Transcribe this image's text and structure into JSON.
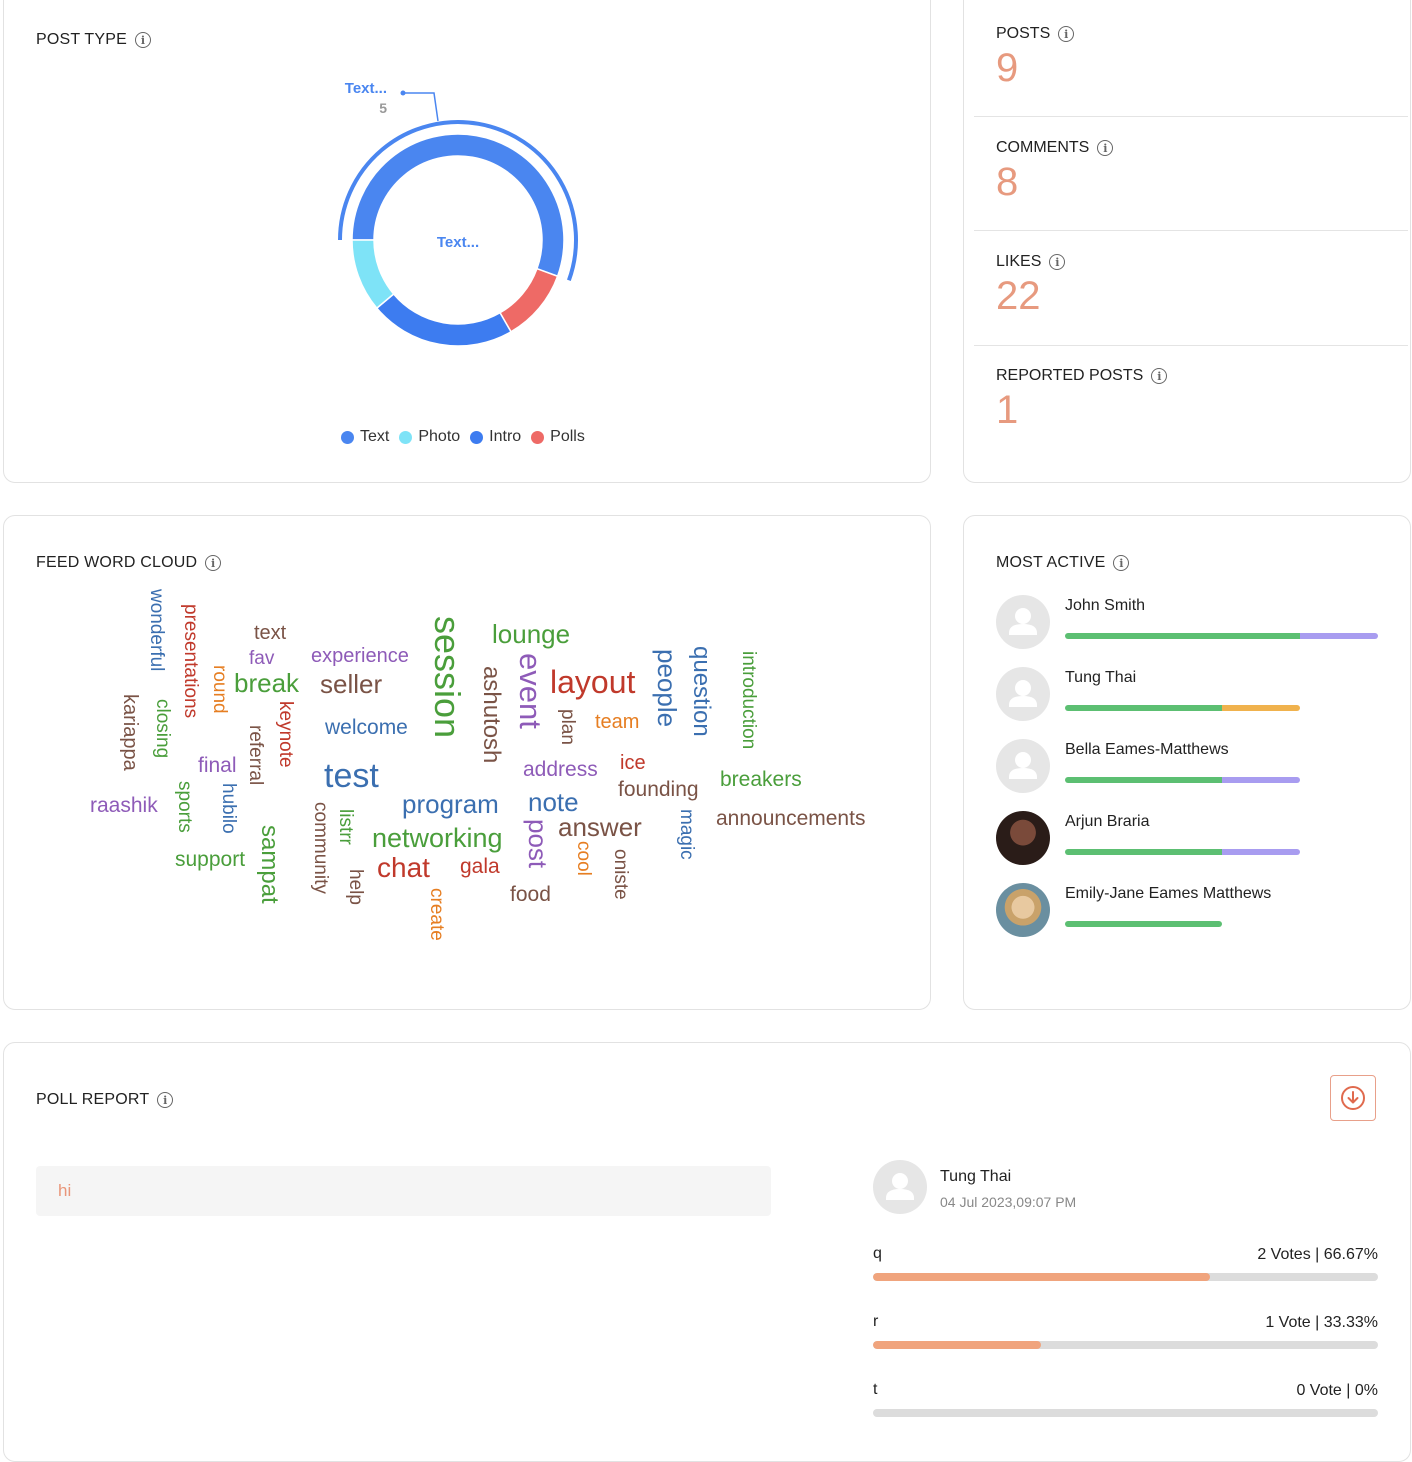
{
  "post_type": {
    "title": "POST TYPE",
    "callout_label": "Text...",
    "callout_value": "5",
    "center_label": "Text...",
    "legend": [
      {
        "label": "Text",
        "color": "#4a86f0"
      },
      {
        "label": "Photo",
        "color": "#7ee3f7"
      },
      {
        "label": "Intro",
        "color": "#3d7cf0"
      },
      {
        "label": "Polls",
        "color": "#ee6a66"
      }
    ],
    "chart_data": {
      "type": "pie",
      "title": "",
      "categories": [
        "Text",
        "Polls",
        "Intro",
        "Photo"
      ],
      "values": [
        5,
        1,
        2,
        1
      ],
      "colors": [
        "#4a86f0",
        "#ee6a66",
        "#3d7cf0",
        "#7ee3f7"
      ]
    }
  },
  "stats": [
    {
      "label": "POSTS",
      "value": "9"
    },
    {
      "label": "COMMENTS",
      "value": "8"
    },
    {
      "label": "LIKES",
      "value": "22"
    },
    {
      "label": "REPORTED POSTS",
      "value": "1"
    }
  ],
  "word_cloud": {
    "title": "FEED WORD CLOUD",
    "words": [
      {
        "text": "wonderful",
        "color": "#3b6fb0"
      },
      {
        "text": "presentations",
        "color": "#c0392b"
      },
      {
        "text": "text",
        "color": "#7a5346"
      },
      {
        "text": "fav",
        "color": "#8e5bb8"
      },
      {
        "text": "experience",
        "color": "#8e5bb8"
      },
      {
        "text": "session",
        "color": "#4a9e3b"
      },
      {
        "text": "lounge",
        "color": "#4a9e3b"
      },
      {
        "text": "layout",
        "color": "#c0392b"
      },
      {
        "text": "people",
        "color": "#3b6fb0"
      },
      {
        "text": "question",
        "color": "#3b6fb0"
      },
      {
        "text": "introduction",
        "color": "#4a9e3b"
      },
      {
        "text": "round",
        "color": "#e67e22"
      },
      {
        "text": "break",
        "color": "#4a9e3b"
      },
      {
        "text": "seller",
        "color": "#7a5346"
      },
      {
        "text": "kariappa",
        "color": "#7a5346"
      },
      {
        "text": "closing",
        "color": "#4a9e3b"
      },
      {
        "text": "keynote",
        "color": "#c0392b"
      },
      {
        "text": "referral",
        "color": "#7a5346"
      },
      {
        "text": "welcome",
        "color": "#3b6fb0"
      },
      {
        "text": "ashutosh",
        "color": "#7a5346"
      },
      {
        "text": "event",
        "color": "#8e5bb8"
      },
      {
        "text": "plan",
        "color": "#7a5346"
      },
      {
        "text": "team",
        "color": "#e67e22"
      },
      {
        "text": "final",
        "color": "#8e5bb8"
      },
      {
        "text": "test",
        "color": "#3b6fb0"
      },
      {
        "text": "address",
        "color": "#8e5bb8"
      },
      {
        "text": "ice",
        "color": "#c0392b"
      },
      {
        "text": "breakers",
        "color": "#4a9e3b"
      },
      {
        "text": "raashik",
        "color": "#8e5bb8"
      },
      {
        "text": "sports",
        "color": "#4a9e3b"
      },
      {
        "text": "hubilo",
        "color": "#3b6fb0"
      },
      {
        "text": "founding",
        "color": "#7a5346"
      },
      {
        "text": "program",
        "color": "#3b6fb0"
      },
      {
        "text": "note",
        "color": "#3b6fb0"
      },
      {
        "text": "announcements",
        "color": "#7a5346"
      },
      {
        "text": "community",
        "color": "#7a5346"
      },
      {
        "text": "listrr",
        "color": "#4a9e3b"
      },
      {
        "text": "answer",
        "color": "#7a5346"
      },
      {
        "text": "magic",
        "color": "#3b6fb0"
      },
      {
        "text": "sampat",
        "color": "#4a9e3b"
      },
      {
        "text": "networking",
        "color": "#4a9e3b"
      },
      {
        "text": "post",
        "color": "#8e5bb8"
      },
      {
        "text": "support",
        "color": "#4a9e3b"
      },
      {
        "text": "cool",
        "color": "#e67e22"
      },
      {
        "text": "chat",
        "color": "#c0392b"
      },
      {
        "text": "gala",
        "color": "#c0392b"
      },
      {
        "text": "help",
        "color": "#7a5346"
      },
      {
        "text": "oniste",
        "color": "#7a5346"
      },
      {
        "text": "food",
        "color": "#7a5346"
      },
      {
        "text": "create",
        "color": "#e67e22"
      }
    ]
  },
  "most_active": {
    "title": "MOST ACTIVE",
    "users": [
      {
        "name": "John Smith",
        "avatar": "placeholder",
        "bars": [
          {
            "share": 0.75,
            "color": "#5cbf72"
          },
          {
            "share": 0.25,
            "color": "#a89cf0"
          }
        ],
        "total": 1.0
      },
      {
        "name": "Tung Thai",
        "avatar": "placeholder",
        "bars": [
          {
            "share": 0.67,
            "color": "#5cbf72"
          },
          {
            "share": 0.33,
            "color": "#f0b24d"
          }
        ],
        "total": 0.75
      },
      {
        "name": "Bella Eames-Matthews",
        "avatar": "placeholder",
        "bars": [
          {
            "share": 0.67,
            "color": "#5cbf72"
          },
          {
            "share": 0.33,
            "color": "#a89cf0"
          }
        ],
        "total": 0.75
      },
      {
        "name": "Arjun Braria",
        "avatar": "photo",
        "bars": [
          {
            "share": 0.67,
            "color": "#5cbf72"
          },
          {
            "share": 0.33,
            "color": "#a89cf0"
          }
        ],
        "total": 0.75
      },
      {
        "name": "Emily-Jane Eames Matthews",
        "avatar": "photo",
        "bars": [
          {
            "share": 1.0,
            "color": "#5cbf72"
          }
        ],
        "total": 0.5
      }
    ]
  },
  "poll_report": {
    "title": "POLL REPORT",
    "download_icon": "download-circle-icon",
    "question": "hi",
    "author_name": "Tung Thai",
    "author_time": "04 Jul 2023,09:07 PM",
    "options": [
      {
        "label": "q",
        "votes": "2 Votes | 66.67%",
        "fraction": 0.6667
      },
      {
        "label": "r",
        "votes": "1 Vote | 33.33%",
        "fraction": 0.3333
      },
      {
        "label": "t",
        "votes": "0 Vote | 0%",
        "fraction": 0
      }
    ]
  }
}
